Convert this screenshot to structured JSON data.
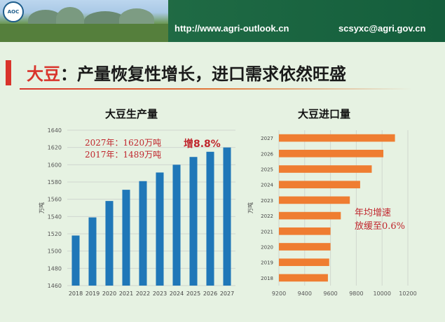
{
  "header": {
    "logo_text": "AOC",
    "url": "http://www.agri-outlook.cn",
    "email": "scsyxc@agri.gov.cn"
  },
  "slide": {
    "title_highlight": "大豆",
    "title_rest": "：产量恢复性增长，进口需求依然旺盛"
  },
  "colors": {
    "bar_blue": "#1f77b8",
    "bar_orange": "#ef7d31",
    "accent_red": "#c0262d"
  },
  "chart_data": [
    {
      "type": "bar",
      "title": "大豆生产量",
      "ylabel": "万吨",
      "xlabel": "",
      "categories": [
        "2018",
        "2019",
        "2020",
        "2021",
        "2022",
        "2023",
        "2024",
        "2025",
        "2026",
        "2027"
      ],
      "values": [
        1518,
        1539,
        1558,
        1571,
        1581,
        1591,
        1600,
        1609,
        1615,
        1620
      ],
      "ylim": [
        1460,
        1640
      ],
      "yticks": [
        "1460",
        "1480",
        "1500",
        "1520",
        "1540",
        "1560",
        "1580",
        "1600",
        "1620",
        "1640"
      ],
      "grid": true,
      "annotations": [
        "2027年：1620万吨",
        "2017年：1489万吨",
        "增8.8%"
      ]
    },
    {
      "type": "bar",
      "orientation": "horizontal",
      "title": "大豆进口量",
      "ylabel": "万吨",
      "xlabel": "",
      "categories": [
        "2027",
        "2026",
        "2025",
        "2024",
        "2023",
        "2022",
        "2021",
        "2020",
        "2019",
        "2018"
      ],
      "values": [
        10100,
        10010,
        9920,
        9830,
        9750,
        9680,
        9600,
        9600,
        9590,
        9580
      ],
      "xlim": [
        9200,
        10200
      ],
      "xticks": [
        "9200",
        "9400",
        "9600",
        "9800",
        "10000",
        "10200"
      ],
      "grid": true,
      "annotations": [
        "年均增速",
        "放缓至0.6%"
      ]
    }
  ]
}
